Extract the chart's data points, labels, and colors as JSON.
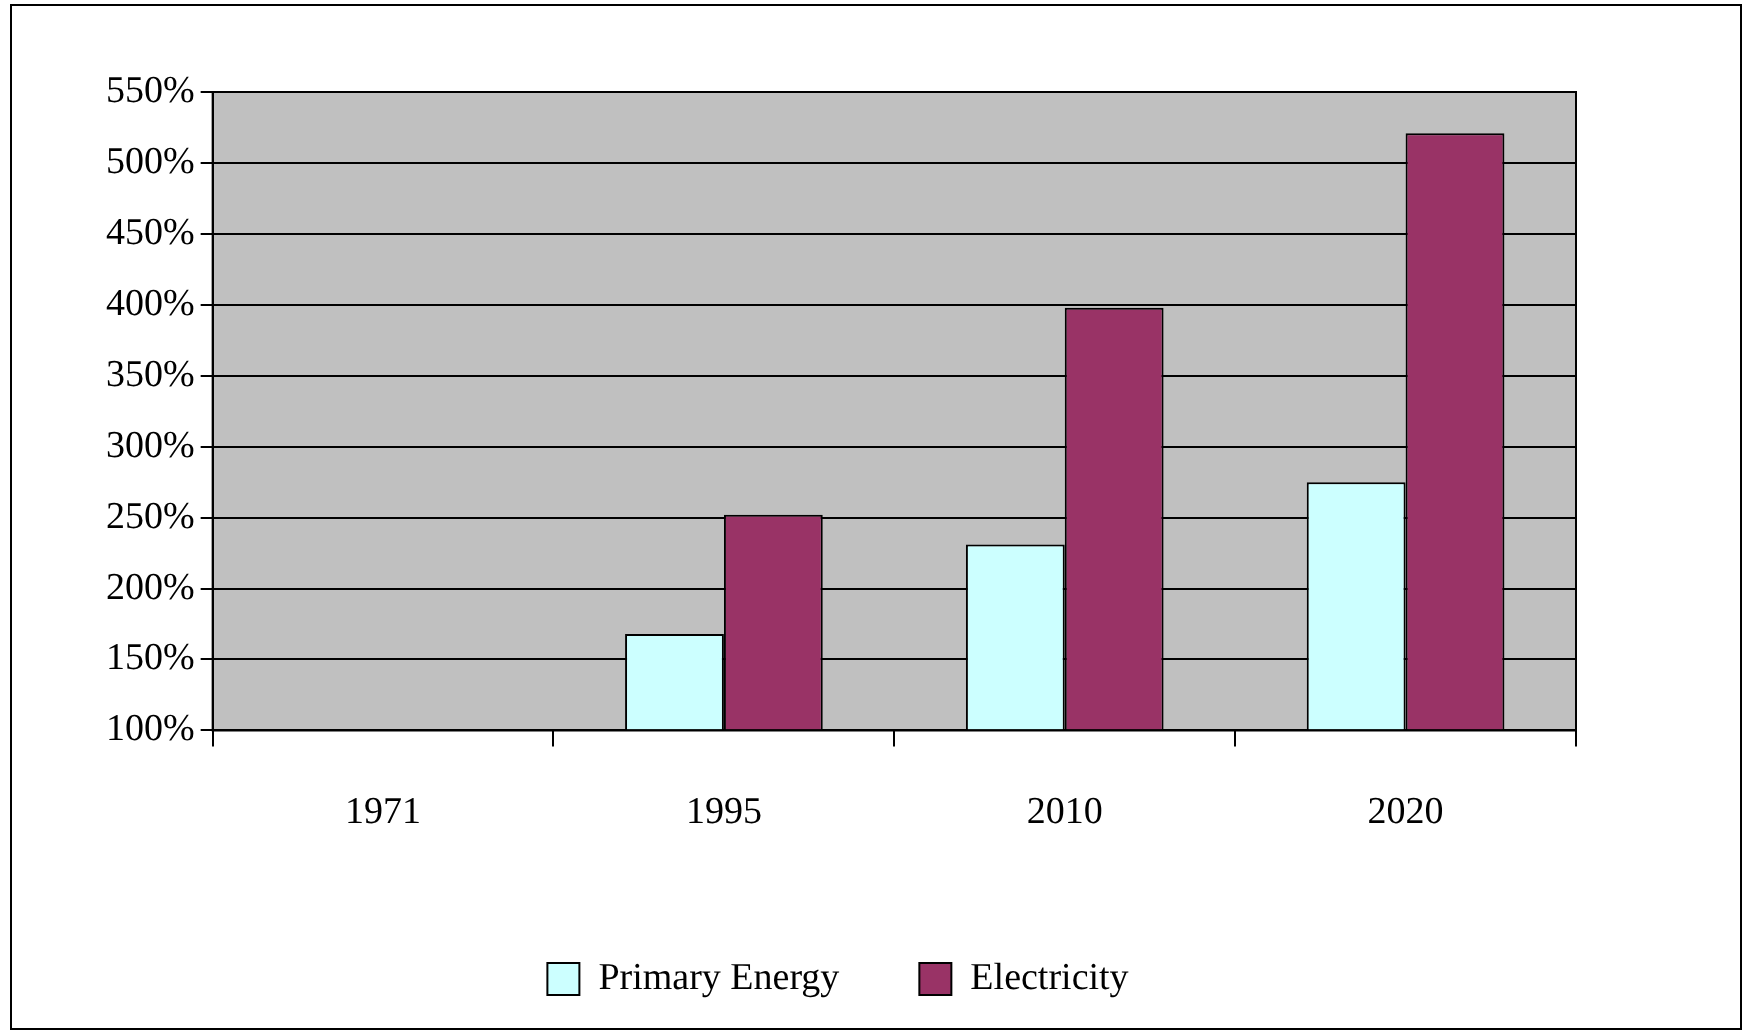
{
  "chart_data": {
    "type": "bar",
    "categories": [
      "1971",
      "1995",
      "2010",
      "2020"
    ],
    "series": [
      {
        "name": "Primary Energy",
        "color": "#ccffff",
        "values": [
          100,
          168,
          231,
          275
        ]
      },
      {
        "name": "Electricity",
        "color": "#993366",
        "values": [
          100,
          252,
          398,
          521
        ]
      }
    ],
    "ylim": [
      100,
      550
    ],
    "yticks": [
      {
        "value": 100,
        "label": "100%"
      },
      {
        "value": 150,
        "label": "150%"
      },
      {
        "value": 200,
        "label": "200%"
      },
      {
        "value": 250,
        "label": "250%"
      },
      {
        "value": 300,
        "label": "300%"
      },
      {
        "value": 350,
        "label": "350%"
      },
      {
        "value": 400,
        "label": "400%"
      },
      {
        "value": 450,
        "label": "450%"
      },
      {
        "value": 500,
        "label": "500%"
      },
      {
        "value": 550,
        "label": "550%"
      }
    ],
    "grid": "y",
    "legend": "bottom"
  }
}
